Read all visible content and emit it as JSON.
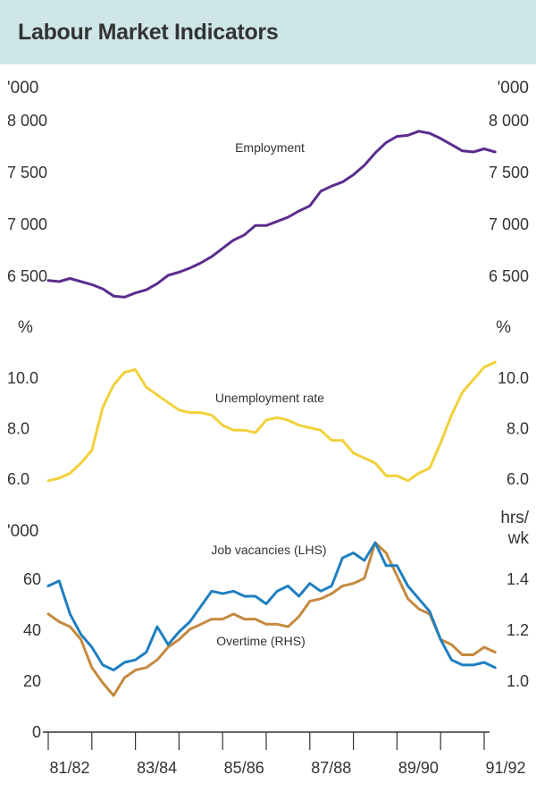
{
  "title": "Labour Market Indicators",
  "colors": {
    "band": "#cfe6e8",
    "employment": "#5b2d8e",
    "unemployment": "#f2d13a",
    "vacancies": "#1f7fc0",
    "overtime": "#c48a3f",
    "axis": "#333333"
  },
  "chart_data": [
    {
      "type": "line",
      "panel": "top",
      "unit_left": "'000",
      "unit_right": "'000",
      "ylim": [
        6300,
        8100
      ],
      "yticks": [
        6500,
        7000,
        7500,
        8000
      ],
      "ytick_labels": [
        "6 500",
        "7 000",
        "7 500",
        "8 000"
      ],
      "series": [
        {
          "name": "Employment",
          "label": "Employment",
          "x": [
            1981.5,
            1981.75,
            1982.0,
            1982.25,
            1982.5,
            1982.75,
            1983.0,
            1983.25,
            1983.5,
            1983.75,
            1984.0,
            1984.25,
            1984.5,
            1984.75,
            1985.0,
            1985.25,
            1985.5,
            1985.75,
            1986.0,
            1986.25,
            1986.5,
            1986.75,
            1987.0,
            1987.25,
            1987.5,
            1987.75,
            1988.0,
            1988.25,
            1988.5,
            1988.75,
            1989.0,
            1989.25,
            1989.5,
            1989.75,
            1990.0,
            1990.25,
            1990.5,
            1990.75,
            1991.0,
            1991.25,
            1991.5,
            1991.75
          ],
          "values": [
            6450,
            6440,
            6470,
            6440,
            6410,
            6370,
            6300,
            6290,
            6330,
            6360,
            6420,
            6500,
            6530,
            6570,
            6620,
            6680,
            6760,
            6840,
            6890,
            6980,
            6980,
            7020,
            7060,
            7120,
            7170,
            7310,
            7360,
            7400,
            7470,
            7560,
            7680,
            7780,
            7840,
            7850,
            7890,
            7870,
            7820,
            7760,
            7700,
            7690,
            7720,
            7690
          ]
        }
      ]
    },
    {
      "type": "line",
      "panel": "middle",
      "unit_left": "%",
      "unit_right": "%",
      "ylim": [
        5.5,
        11.2
      ],
      "yticks": [
        6.0,
        8.0,
        10.0
      ],
      "ytick_labels": [
        "6.0",
        "8.0",
        "10.0"
      ],
      "series": [
        {
          "name": "Unemployment rate",
          "label": "Unemployment rate",
          "x": [
            1981.5,
            1981.75,
            1982.0,
            1982.25,
            1982.5,
            1982.75,
            1983.0,
            1983.25,
            1983.5,
            1983.75,
            1984.0,
            1984.25,
            1984.5,
            1984.75,
            1985.0,
            1985.25,
            1985.5,
            1985.75,
            1986.0,
            1986.25,
            1986.5,
            1986.75,
            1987.0,
            1987.25,
            1987.5,
            1987.75,
            1988.0,
            1988.25,
            1988.5,
            1988.75,
            1989.0,
            1989.25,
            1989.5,
            1989.75,
            1990.0,
            1990.25,
            1990.5,
            1990.75,
            1991.0,
            1991.25,
            1991.5,
            1991.75
          ],
          "values": [
            5.9,
            6.0,
            6.2,
            6.6,
            7.1,
            8.8,
            9.7,
            10.2,
            10.3,
            9.6,
            9.3,
            9.0,
            8.7,
            8.6,
            8.6,
            8.5,
            8.1,
            7.9,
            7.9,
            7.8,
            8.3,
            8.4,
            8.3,
            8.1,
            8.0,
            7.9,
            7.5,
            7.5,
            7.0,
            6.8,
            6.6,
            6.1,
            6.1,
            5.9,
            6.2,
            6.4,
            7.4,
            8.5,
            9.4,
            9.9,
            10.4,
            10.6
          ]
        }
      ]
    },
    {
      "type": "line",
      "panel": "bottom",
      "unit_left": "'000",
      "unit_right": "hrs/ wk",
      "unit_right_lines": [
        "hrs/",
        "wk"
      ],
      "ylim_left": [
        0,
        80
      ],
      "yticks_left": [
        0,
        20,
        40,
        60
      ],
      "ytick_labels_left": [
        "0",
        "20",
        "40",
        "60"
      ],
      "ylim_right": [
        0.7,
        1.5
      ],
      "yticks_right": [
        1.0,
        1.2,
        1.4
      ],
      "ytick_labels_right": [
        "1.0",
        "1.2",
        "1.4"
      ],
      "xticks": [
        "81/82",
        "83/84",
        "85/86",
        "87/88",
        "89/90",
        "91/92"
      ],
      "series": [
        {
          "name": "Job vacancies (LHS)",
          "label": "Job vacancies (LHS)",
          "axis": "left",
          "x": [
            1981.5,
            1981.75,
            1982.0,
            1982.25,
            1982.5,
            1982.75,
            1983.0,
            1983.25,
            1983.5,
            1983.75,
            1984.0,
            1984.25,
            1984.5,
            1984.75,
            1985.0,
            1985.25,
            1985.5,
            1985.75,
            1986.0,
            1986.25,
            1986.5,
            1986.75,
            1987.0,
            1987.25,
            1987.5,
            1987.75,
            1988.0,
            1988.25,
            1988.5,
            1988.75,
            1989.0,
            1989.25,
            1989.5,
            1989.75,
            1990.0,
            1990.25,
            1990.5,
            1990.75,
            1991.0,
            1991.25,
            1991.5,
            1991.75
          ],
          "values": [
            57,
            59,
            46,
            38,
            33,
            26,
            24,
            27,
            28,
            31,
            41,
            34,
            39,
            43,
            49,
            55,
            54,
            55,
            53,
            53,
            50,
            55,
            57,
            53,
            58,
            55,
            57,
            68,
            70,
            67,
            74,
            65,
            65,
            57,
            52,
            47,
            36,
            28,
            26,
            26,
            27,
            25
          ]
        },
        {
          "name": "Overtime (RHS)",
          "label": "Overtime (RHS)",
          "axis": "right",
          "x": [
            1981.5,
            1981.75,
            1982.0,
            1982.25,
            1982.5,
            1982.75,
            1983.0,
            1983.25,
            1983.5,
            1983.75,
            1984.0,
            1984.25,
            1984.5,
            1984.75,
            1985.0,
            1985.25,
            1985.5,
            1985.75,
            1986.0,
            1986.25,
            1986.5,
            1986.75,
            1987.0,
            1987.25,
            1987.5,
            1987.75,
            1988.0,
            1988.25,
            1988.5,
            1988.75,
            1989.0,
            1989.25,
            1989.5,
            1989.75,
            1990.0,
            1990.25,
            1990.5,
            1990.75,
            1991.0,
            1991.25,
            1991.5,
            1991.75
          ],
          "values": [
            1.26,
            1.23,
            1.21,
            1.16,
            1.05,
            0.99,
            0.94,
            1.01,
            1.04,
            1.05,
            1.08,
            1.13,
            1.16,
            1.2,
            1.22,
            1.24,
            1.24,
            1.26,
            1.24,
            1.24,
            1.22,
            1.22,
            1.21,
            1.25,
            1.31,
            1.32,
            1.34,
            1.37,
            1.38,
            1.4,
            1.54,
            1.5,
            1.41,
            1.32,
            1.28,
            1.26,
            1.16,
            1.14,
            1.1,
            1.1,
            1.13,
            1.11
          ]
        }
      ]
    }
  ]
}
